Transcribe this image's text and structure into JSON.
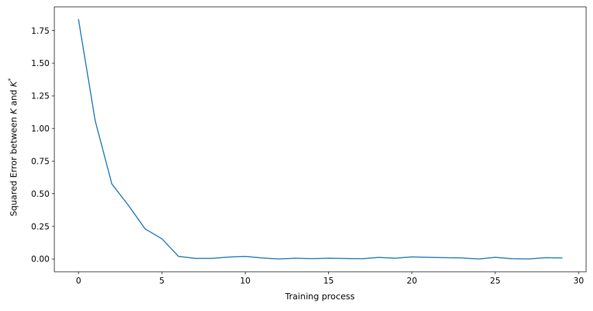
{
  "chart_data": {
    "type": "line",
    "title": "",
    "xlabel": "Training process",
    "ylabel": {
      "prefix": "Squared Error between ",
      "var1": "K",
      "middle": " and ",
      "var2": "K",
      "sup": "*"
    },
    "xlim": [
      -1.45,
      30.45
    ],
    "ylim": [
      -0.098,
      1.932
    ],
    "xticks": [
      0,
      5,
      10,
      15,
      20,
      25,
      30
    ],
    "xtick_labels": [
      "0",
      "5",
      "10",
      "15",
      "20",
      "25",
      "30"
    ],
    "yticks": [
      0.0,
      0.25,
      0.5,
      0.75,
      1.0,
      1.25,
      1.5,
      1.75
    ],
    "ytick_labels": [
      "0.00",
      "0.25",
      "0.50",
      "0.75",
      "1.00",
      "1.25",
      "1.50",
      "1.75"
    ],
    "grid": false,
    "series": [
      {
        "color": "#1f77b4",
        "x": [
          0,
          1,
          2,
          3,
          4,
          5,
          6,
          7,
          8,
          9,
          10,
          11,
          12,
          13,
          14,
          15,
          16,
          17,
          18,
          19,
          20,
          21,
          22,
          23,
          24,
          25,
          26,
          27,
          28,
          29
        ],
        "values": [
          1.835,
          1.06,
          0.575,
          0.41,
          0.23,
          0.155,
          0.02,
          0.005,
          0.005,
          0.015,
          0.02,
          0.008,
          0.0,
          0.006,
          0.003,
          0.006,
          0.004,
          0.002,
          0.012,
          0.006,
          0.016,
          0.013,
          0.01,
          0.008,
          0.0,
          0.013,
          0.002,
          0.0,
          0.01,
          0.008
        ]
      }
    ]
  }
}
